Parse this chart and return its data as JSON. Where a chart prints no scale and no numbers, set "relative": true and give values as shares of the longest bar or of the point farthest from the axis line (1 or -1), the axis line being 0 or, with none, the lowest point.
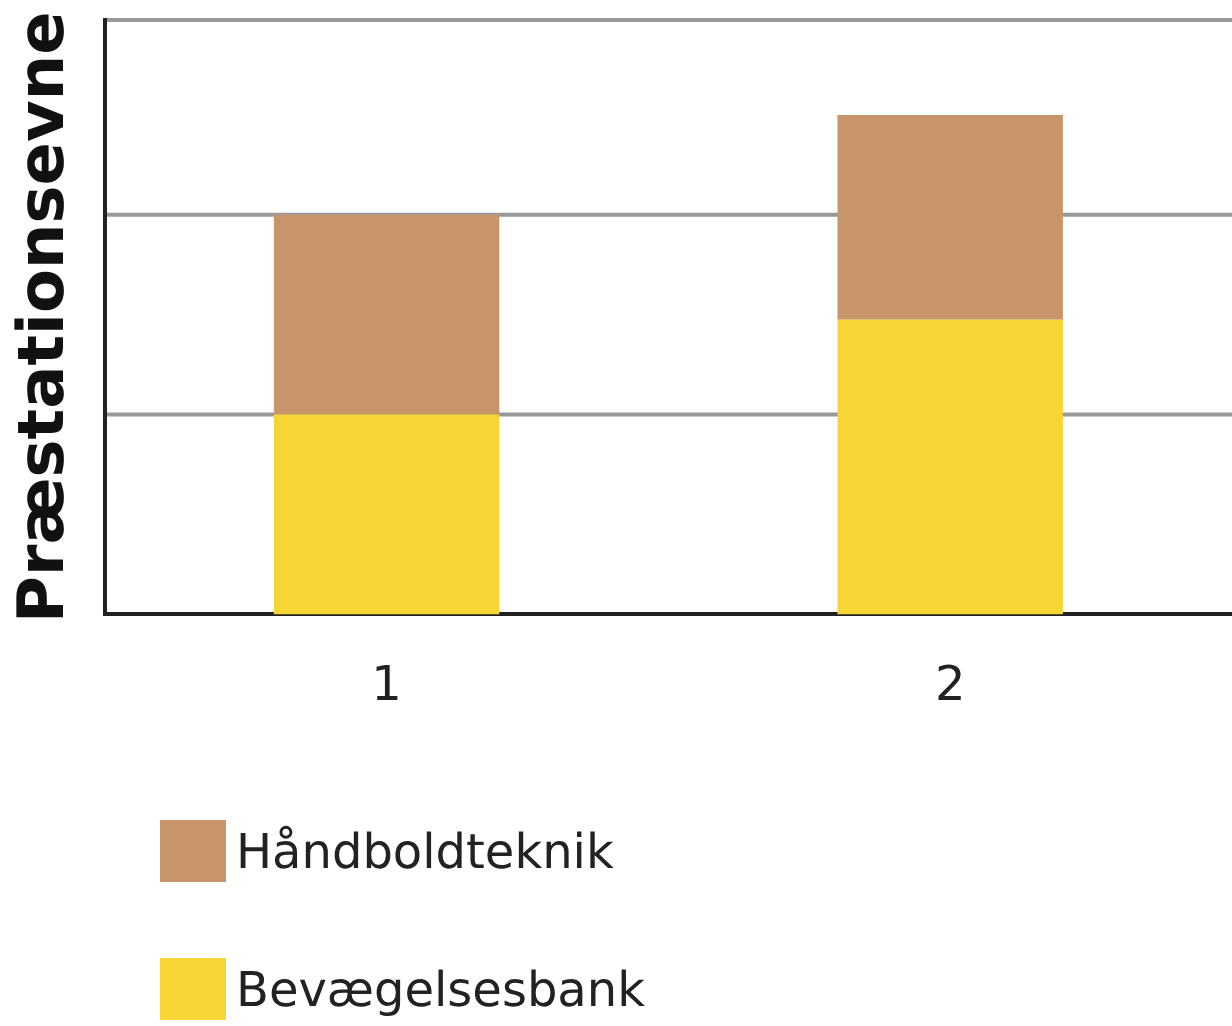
{
  "chart_data": {
    "type": "bar",
    "stacked": true,
    "relative": true,
    "ylabel": "Præstationsevne",
    "categories": [
      "1",
      "2"
    ],
    "series": [
      {
        "name": "Bevægelsesbank",
        "color": "#f6d535",
        "values": [
          0.4,
          0.59
        ]
      },
      {
        "name": "Håndboldteknik",
        "color": "#c8956a",
        "values": [
          0.4,
          0.41
        ]
      }
    ],
    "ref_lines": [
      {
        "axis": "y",
        "value": 0.4,
        "color": "#999999"
      },
      {
        "axis": "y",
        "value": 0.8,
        "color": "#999999"
      },
      {
        "axis": "y",
        "value": 1.19,
        "color": "#999999"
      }
    ],
    "legend": "bottom left"
  }
}
